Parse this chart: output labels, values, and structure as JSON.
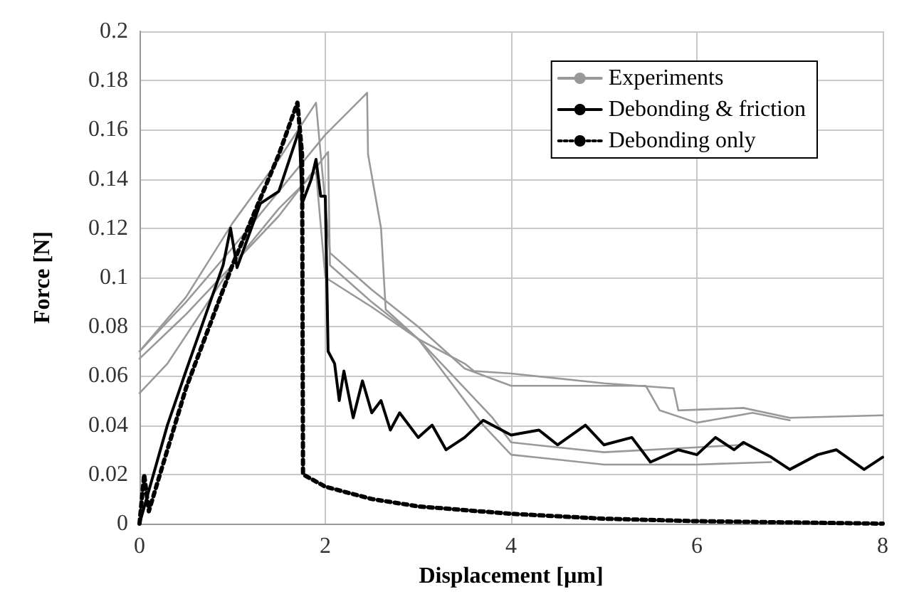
{
  "chart_data": {
    "type": "line",
    "xlabel": "Displacement [µm]",
    "ylabel": "Force [N]",
    "xlim": [
      0,
      8
    ],
    "xticks": [
      0,
      2,
      4,
      6,
      8
    ],
    "ylim": [
      0,
      0.2
    ],
    "yticks": [
      0,
      0.02,
      0.04,
      0.06,
      0.08,
      0.1,
      0.12,
      0.14,
      0.16,
      0.18,
      0.2
    ],
    "grid": true,
    "legend": "top right",
    "marker": "none",
    "series": [
      {
        "name": "Experiments",
        "color": "#999999",
        "line_style": "solid",
        "x": [
          0,
          0.5,
          1,
          1.5,
          2,
          2.45,
          2.46,
          2.6,
          2.65,
          3,
          3.5,
          3.6,
          4,
          5,
          5.75,
          5.8,
          6.5,
          7,
          8
        ],
        "values": [
          0.07,
          0.09,
          0.112,
          0.135,
          0.158,
          0.175,
          0.15,
          0.12,
          0.087,
          0.075,
          0.065,
          0.062,
          0.061,
          0.057,
          0.055,
          0.046,
          0.047,
          0.043,
          0.044
        ]
      },
      {
        "color": "#999999",
        "line_style": "solid",
        "x": [
          0,
          0.5,
          1,
          1.5,
          1.9,
          1.95,
          2.05,
          2.5,
          3,
          3.5,
          4,
          5,
          5.45,
          5.6,
          6,
          6.6,
          7
        ],
        "values": [
          0.07,
          0.092,
          0.122,
          0.148,
          0.171,
          0.15,
          0.11,
          0.095,
          0.08,
          0.063,
          0.056,
          0.056,
          0.056,
          0.046,
          0.041,
          0.045,
          0.042
        ]
      },
      {
        "color": "#999999",
        "line_style": "solid",
        "x": [
          0,
          0.5,
          1,
          1.5,
          2.03,
          2.05,
          2.5,
          3,
          3.5,
          3.8,
          4,
          5,
          6,
          6.5
        ],
        "values": [
          0.067,
          0.085,
          0.105,
          0.125,
          0.151,
          0.105,
          0.09,
          0.075,
          0.055,
          0.043,
          0.033,
          0.029,
          0.031,
          0.032
        ]
      },
      {
        "color": "#999999",
        "line_style": "solid",
        "x": [
          0,
          0.3,
          1,
          1.5,
          1.9,
          2,
          2.5,
          3,
          3.4,
          3.7,
          4,
          5,
          6,
          6.8
        ],
        "values": [
          0.053,
          0.065,
          0.105,
          0.128,
          0.143,
          0.1,
          0.088,
          0.075,
          0.055,
          0.04,
          0.028,
          0.024,
          0.024,
          0.025
        ]
      },
      {
        "name": "Debonding & friction",
        "color": "#000000",
        "line_style": "solid",
        "x": [
          0,
          0.3,
          0.5,
          0.9,
          0.98,
          1.05,
          1.3,
          1.5,
          1.72,
          1.75,
          1.85,
          1.9,
          1.95,
          2,
          2.03,
          2.1,
          2.15,
          2.2,
          2.3,
          2.4,
          2.5,
          2.6,
          2.7,
          2.8,
          3,
          3.15,
          3.3,
          3.5,
          3.7,
          4,
          4.3,
          4.5,
          4.8,
          5,
          5.3,
          5.5,
          5.8,
          6,
          6.2,
          6.4,
          6.5,
          6.8,
          7,
          7.3,
          7.5,
          7.8,
          8
        ],
        "values": [
          0,
          0.04,
          0.062,
          0.105,
          0.12,
          0.104,
          0.13,
          0.135,
          0.16,
          0.13,
          0.14,
          0.148,
          0.133,
          0.133,
          0.07,
          0.065,
          0.05,
          0.062,
          0.043,
          0.058,
          0.045,
          0.05,
          0.038,
          0.045,
          0.035,
          0.04,
          0.03,
          0.035,
          0.042,
          0.036,
          0.038,
          0.032,
          0.04,
          0.032,
          0.035,
          0.025,
          0.03,
          0.028,
          0.035,
          0.03,
          0.033,
          0.027,
          0.022,
          0.028,
          0.03,
          0.022,
          0.027
        ]
      },
      {
        "name": "Debonding only",
        "color": "#000000",
        "line_style": "dotted",
        "x": [
          0,
          0.05,
          0.1,
          0.3,
          0.5,
          1,
          1.5,
          1.7,
          1.75,
          1.76,
          2,
          2.5,
          3,
          4,
          5,
          6,
          8
        ],
        "values": [
          0,
          0.02,
          0.005,
          0.03,
          0.055,
          0.105,
          0.15,
          0.171,
          0.15,
          0.02,
          0.015,
          0.01,
          0.007,
          0.004,
          0.002,
          0.001,
          0
        ]
      }
    ]
  }
}
